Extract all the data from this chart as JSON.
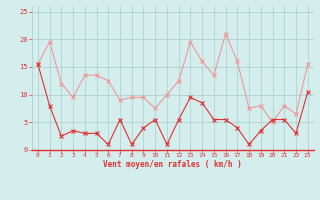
{
  "x": [
    0,
    1,
    2,
    3,
    4,
    5,
    6,
    7,
    8,
    9,
    10,
    11,
    12,
    13,
    14,
    15,
    16,
    17,
    18,
    19,
    20,
    21,
    22,
    23
  ],
  "wind_mean": [
    15.5,
    8.0,
    2.5,
    3.5,
    3.0,
    3.0,
    1.0,
    5.5,
    1.0,
    4.0,
    5.5,
    1.0,
    5.5,
    9.5,
    8.5,
    5.5,
    5.5,
    4.0,
    1.0,
    3.5,
    5.5,
    5.5,
    3.0,
    10.5
  ],
  "wind_gust": [
    15.5,
    19.5,
    12.0,
    9.5,
    13.5,
    13.5,
    12.5,
    9.0,
    9.5,
    9.5,
    7.5,
    10.0,
    12.5,
    19.5,
    16.0,
    13.5,
    21.0,
    16.0,
    7.5,
    8.0,
    5.0,
    8.0,
    6.5,
    15.5
  ],
  "mean_color": "#e03030",
  "gust_color": "#f09898",
  "bg_color": "#d4eeee",
  "grid_color": "#aacccc",
  "xlabel": "Vent moyen/en rafales ( km/h )",
  "xlabel_color": "#e03030",
  "tick_color": "#e03030",
  "spine_color": "#e03030",
  "ylim": [
    0,
    26
  ],
  "xlim": [
    -0.5,
    23.5
  ],
  "yticks": [
    0,
    5,
    10,
    15,
    20,
    25
  ],
  "xticks": [
    0,
    1,
    2,
    3,
    4,
    5,
    6,
    7,
    8,
    9,
    10,
    11,
    12,
    13,
    14,
    15,
    16,
    17,
    18,
    19,
    20,
    21,
    22,
    23
  ],
  "figsize": [
    3.2,
    2.0
  ],
  "dpi": 100
}
